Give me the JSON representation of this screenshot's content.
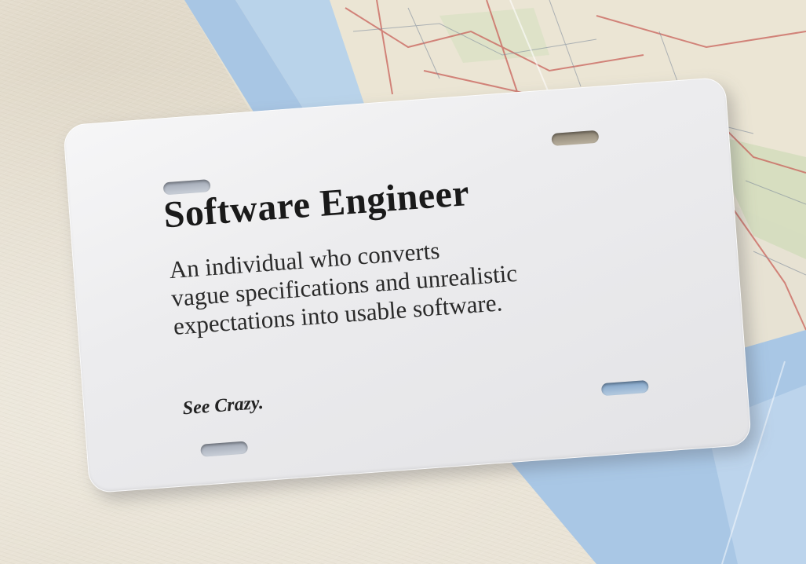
{
  "plate": {
    "title": "Software Engineer",
    "definition_lines": [
      "An individual who converts",
      "vague specifications and unrealistic",
      "expectations into usable software."
    ],
    "signoff": "See Crazy."
  },
  "colors": {
    "surface": "#e9e3d6",
    "plate": "#ececee",
    "map_water": "#a9c8e6",
    "map_land": "#e8e4d6",
    "text": "#1a1a1a"
  }
}
